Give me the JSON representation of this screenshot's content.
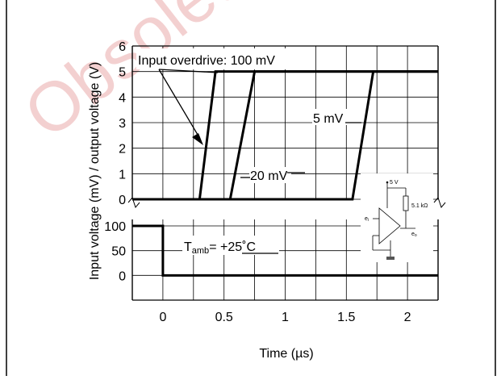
{
  "watermark": "Obsolete",
  "chart_data": {
    "type": "line",
    "title": "",
    "xlabel": "Time (µs)",
    "ylabel": "Input voltage (mV) / output voltage (V)",
    "xlim": [
      -0.25,
      2.25
    ],
    "x_ticks": [
      "0",
      "0.5",
      "1",
      "1.5",
      "2"
    ],
    "x_tick_values": [
      0,
      0.5,
      1,
      1.5,
      2
    ],
    "output_axis": {
      "ylim": [
        0,
        6
      ],
      "ticks": [
        "0",
        "1",
        "2",
        "3",
        "4",
        "5",
        "6"
      ],
      "tick_values": [
        0,
        1,
        2,
        3,
        4,
        5,
        6
      ]
    },
    "input_axis": {
      "ylim": [
        -50,
        100
      ],
      "ticks": [
        "0",
        "50",
        "100"
      ],
      "tick_values": [
        0,
        50,
        100
      ]
    },
    "grid": true,
    "series": [
      {
        "name": "100 mV",
        "axis": "output",
        "x": [
          -0.25,
          0.3,
          0.43,
          2.25
        ],
        "y": [
          0,
          0,
          5,
          5
        ]
      },
      {
        "name": "20 mV",
        "axis": "output",
        "x": [
          -0.25,
          0.55,
          0.75,
          2.25
        ],
        "y": [
          0,
          0,
          5,
          5
        ]
      },
      {
        "name": "5 mV",
        "axis": "output",
        "x": [
          -0.25,
          1.55,
          1.72,
          2.25
        ],
        "y": [
          0,
          0,
          5,
          5
        ]
      },
      {
        "name": "Input",
        "axis": "input",
        "x": [
          -0.25,
          0,
          0,
          2.25
        ],
        "y": [
          100,
          100,
          0,
          0
        ]
      }
    ],
    "annotations": {
      "overdrive": "Input overdrive: 100 mV",
      "label_20": "20 mV",
      "label_5": "5 mV",
      "tamb_main": "T",
      "tamb_sub": "amb",
      "tamb_value": "= +25˚C"
    },
    "inset": {
      "supply": "5 V",
      "resistor": "5.1 kΩ",
      "input_label": "e",
      "input_sub": "i",
      "output_label": "e",
      "output_sub": "o"
    }
  }
}
